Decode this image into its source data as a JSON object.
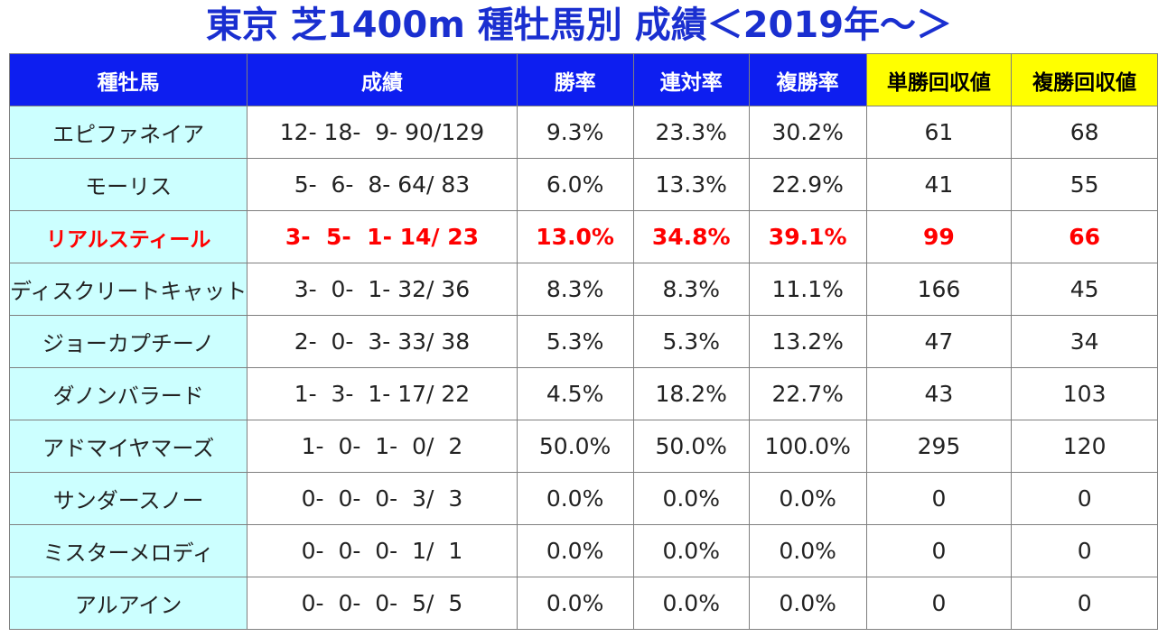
{
  "title": "東京 芝1400m 種牡馬別 成績＜2019年～＞",
  "colors": {
    "title": "#1a2fd0",
    "header_bg": "#0d1ef0",
    "header_highlight_bg": "#ffff00",
    "sire_column_bg": "#ccffff",
    "featured_text": "#ff0000"
  },
  "table": {
    "headers": [
      "種牡馬",
      "成績",
      "勝率",
      "連対率",
      "複勝率",
      "単勝回収値",
      "複勝回収値"
    ],
    "highlighted_headers": [
      "単勝回収値",
      "複勝回収値"
    ],
    "featured_row": "リアルスティール",
    "rows": [
      {
        "sire": "エピファネイア",
        "record": "12- 18-  9- 90/129",
        "win_rate": "9.3%",
        "quinella_rate": "23.3%",
        "place_rate": "30.2%",
        "win_return": "61",
        "place_return": "68"
      },
      {
        "sire": "モーリス",
        "record": "5-  6-  8- 64/ 83",
        "win_rate": "6.0%",
        "quinella_rate": "13.3%",
        "place_rate": "22.9%",
        "win_return": "41",
        "place_return": "55"
      },
      {
        "sire": "リアルスティール",
        "record": "3-  5-  1- 14/ 23",
        "win_rate": "13.0%",
        "quinella_rate": "34.8%",
        "place_rate": "39.1%",
        "win_return": "99",
        "place_return": "66"
      },
      {
        "sire": "ディスクリートキャット",
        "record": "3-  0-  1- 32/ 36",
        "win_rate": "8.3%",
        "quinella_rate": "8.3%",
        "place_rate": "11.1%",
        "win_return": "166",
        "place_return": "45"
      },
      {
        "sire": "ジョーカプチーノ",
        "record": "2-  0-  3- 33/ 38",
        "win_rate": "5.3%",
        "quinella_rate": "5.3%",
        "place_rate": "13.2%",
        "win_return": "47",
        "place_return": "34"
      },
      {
        "sire": "ダノンバラード",
        "record": "1-  3-  1- 17/ 22",
        "win_rate": "4.5%",
        "quinella_rate": "18.2%",
        "place_rate": "22.7%",
        "win_return": "43",
        "place_return": "103"
      },
      {
        "sire": "アドマイヤマーズ",
        "record": "1-  0-  1-  0/  2",
        "win_rate": "50.0%",
        "quinella_rate": "50.0%",
        "place_rate": "100.0%",
        "win_return": "295",
        "place_return": "120"
      },
      {
        "sire": "サンダースノー",
        "record": "0-  0-  0-  3/  3",
        "win_rate": "0.0%",
        "quinella_rate": "0.0%",
        "place_rate": "0.0%",
        "win_return": "0",
        "place_return": "0"
      },
      {
        "sire": "ミスターメロディ",
        "record": "0-  0-  0-  1/  1",
        "win_rate": "0.0%",
        "quinella_rate": "0.0%",
        "place_rate": "0.0%",
        "win_return": "0",
        "place_return": "0"
      },
      {
        "sire": "アルアイン",
        "record": "0-  0-  0-  5/  5",
        "win_rate": "0.0%",
        "quinella_rate": "0.0%",
        "place_rate": "0.0%",
        "win_return": "0",
        "place_return": "0"
      }
    ]
  }
}
